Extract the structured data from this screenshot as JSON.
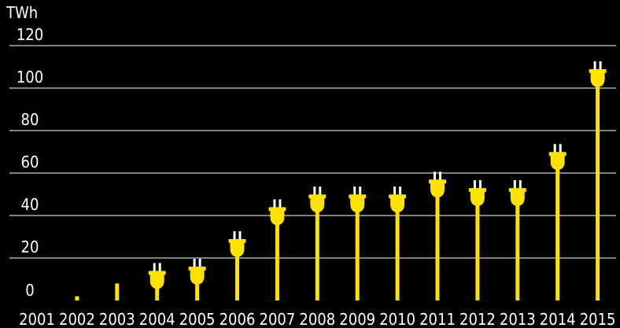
{
  "chart_data": {
    "type": "bar",
    "unit_label": "TWh",
    "categories": [
      "2001",
      "2002",
      "2003",
      "2004",
      "2005",
      "2006",
      "2007",
      "2008",
      "2009",
      "2010",
      "2011",
      "2012",
      "2013",
      "2014",
      "2015"
    ],
    "values": [
      0,
      2,
      8,
      8,
      10,
      23,
      38,
      44,
      44,
      44,
      51,
      47,
      47,
      64,
      103
    ],
    "ylim": [
      0,
      120
    ],
    "yticks": [
      "0",
      "20",
      "40",
      "60",
      "80",
      "100",
      "120"
    ],
    "grid": true,
    "colors": {
      "background": "#000000",
      "bar": "#ffe200",
      "grid": "#ffffff",
      "text": "#ffffff"
    }
  }
}
